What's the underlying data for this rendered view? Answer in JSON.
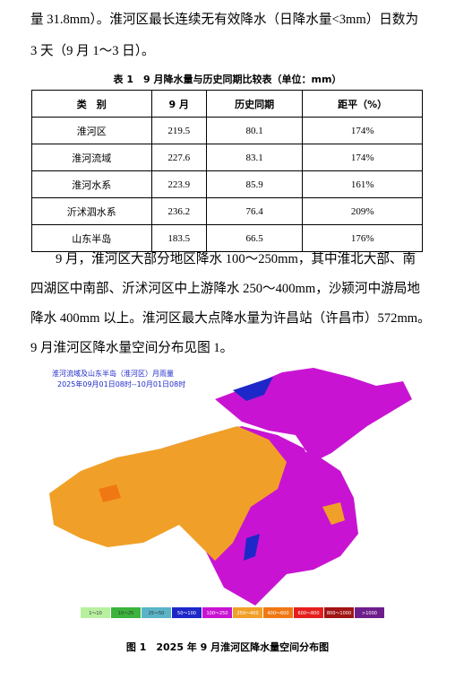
{
  "paragraph1": {
    "lines": [
      "量 31.8mm）。淮河区最长连续无有效降水（日降水量<3mm）日数为",
      "3 天（9 月 1～3 日）。"
    ]
  },
  "table": {
    "caption": "表 1　9 月降水量与历史同期比较表（单位：mm）",
    "header": [
      "类　别",
      "9 月",
      "历史同期",
      "距平（%）"
    ],
    "rows": [
      [
        "淮河区",
        "219.5",
        "80.1",
        "174%"
      ],
      [
        "淮河流域",
        "227.6",
        "83.1",
        "174%"
      ],
      [
        "淮河水系",
        "223.9",
        "85.9",
        "161%"
      ],
      [
        "沂沭泗水系",
        "236.2",
        "76.4",
        "209%"
      ],
      [
        "山东半岛",
        "183.5",
        "66.5",
        "176%"
      ]
    ]
  },
  "paragraph2": {
    "lines": [
      "9 月，淮河区大部分地区降水 100～250mm，其中淮北大部、南",
      "四湖区中南部、沂沭河区中上游降水 250～400mm，沙颍河中游局地",
      "降水 400mm 以上。淮河区最大点降水量为许昌站（许昌市）572mm。",
      "9 月淮河区降水量空间分布见图 1。"
    ]
  },
  "figure": {
    "map_title": [
      "淮河流域及山东半岛（淮河区）月雨量",
      "2025年09月01日08时--10月01日08时"
    ],
    "legend": [
      {
        "label": "1～10",
        "color": "#b8f0a0"
      },
      {
        "label": "10～25",
        "color": "#3cb43c"
      },
      {
        "label": "25～50",
        "color": "#5ab4c8"
      },
      {
        "label": "50～100",
        "color": "#1e28c8"
      },
      {
        "label": "100～250",
        "color": "#c814d2"
      },
      {
        "label": "250～400",
        "color": "#f0a028"
      },
      {
        "label": "400～600",
        "color": "#f07814"
      },
      {
        "label": "600～800",
        "color": "#e61e1e"
      },
      {
        "label": "800～1000",
        "color": "#a01414"
      },
      {
        "label": ">1000",
        "color": "#6e1e8c"
      }
    ],
    "caption": "图 1　2025 年 9 月淮河区降水量空间分布图"
  }
}
